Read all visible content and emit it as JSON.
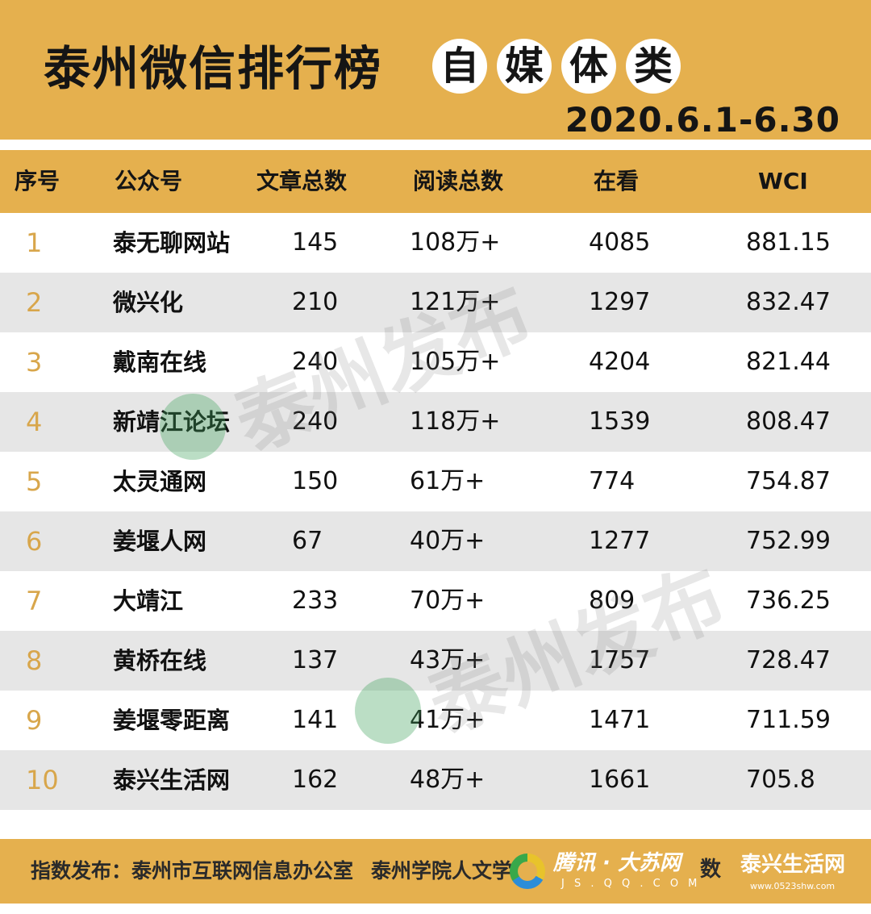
{
  "header": {
    "title": "泰州微信排行榜",
    "category_chars": [
      "自",
      "媒",
      "体",
      "类"
    ],
    "date_range": "2020.6.1-6.30"
  },
  "table": {
    "columns": [
      "序号",
      "公众号",
      "文章总数",
      "阅读总数",
      "在看",
      "WCI"
    ],
    "rows": [
      {
        "rank": "1",
        "name": "泰无聊网站",
        "articles": "145",
        "reads": "108万+",
        "looking": "4085",
        "wci": "881.15"
      },
      {
        "rank": "2",
        "name": "微兴化",
        "articles": "210",
        "reads": "121万+",
        "looking": "1297",
        "wci": "832.47"
      },
      {
        "rank": "3",
        "name": "戴南在线",
        "articles": "240",
        "reads": "105万+",
        "looking": "4204",
        "wci": "821.44"
      },
      {
        "rank": "4",
        "name": "新靖江论坛",
        "articles": "240",
        "reads": "118万+",
        "looking": "1539",
        "wci": "808.47"
      },
      {
        "rank": "5",
        "name": "太灵通网",
        "articles": "150",
        "reads": "61万+",
        "looking": "774",
        "wci": "754.87"
      },
      {
        "rank": "6",
        "name": "姜堰人网",
        "articles": "67",
        "reads": "40万+",
        "looking": "1277",
        "wci": "752.99"
      },
      {
        "rank": "7",
        "name": "大靖江",
        "articles": "233",
        "reads": "70万+",
        "looking": "809",
        "wci": "736.25"
      },
      {
        "rank": "8",
        "name": "黄桥在线",
        "articles": "137",
        "reads": "43万+",
        "looking": "1757",
        "wci": "728.47"
      },
      {
        "rank": "9",
        "name": "姜堰零距离",
        "articles": "141",
        "reads": "41万+",
        "looking": "1471",
        "wci": "711.59"
      },
      {
        "rank": "10",
        "name": "泰兴生活网",
        "articles": "162",
        "reads": "48万+",
        "looking": "1661",
        "wci": "705.8"
      }
    ]
  },
  "watermarks": [
    "泰州发布",
    "泰州发布"
  ],
  "footer": {
    "label": "指数发布：",
    "org1": "泰州市互联网信息办公室",
    "org2": "泰州学院人文学院",
    "partner1": "腾讯 · 大苏网",
    "partner1_sub": "J S . Q Q . C O M",
    "overlap": "数",
    "partner2": "泰兴生活网",
    "partner2_sub": "www.0523shw.com"
  },
  "colors": {
    "accent": "#e5b04e",
    "rank_gold": "#d8a64b",
    "stripe": "#e6e6e6",
    "text": "#111111"
  }
}
